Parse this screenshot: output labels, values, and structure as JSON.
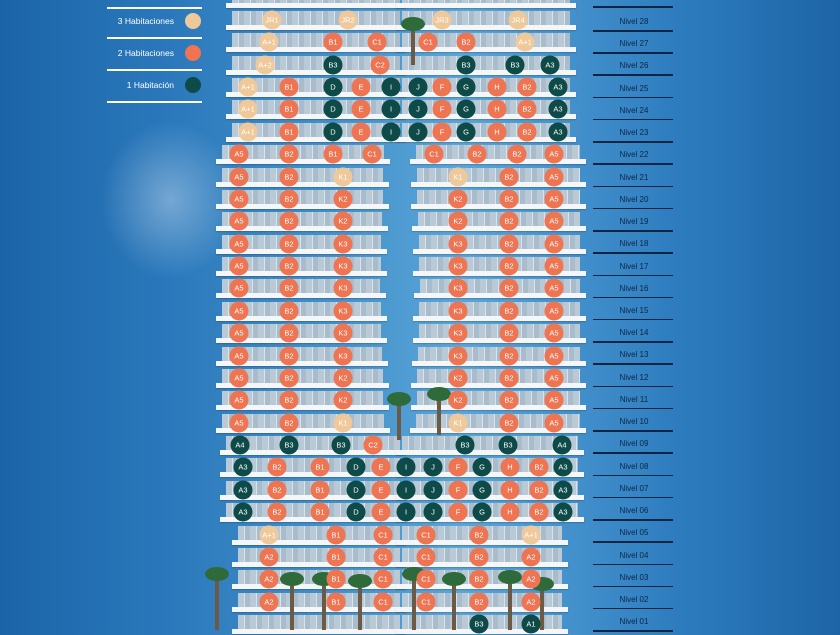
{
  "colors": {
    "three_bed": "#f0c99a",
    "two_bed": "#ee7452",
    "one_bed": "#0d4a48"
  },
  "legend": [
    {
      "label": "3 Habitaciones",
      "type": "three_bed"
    },
    {
      "label": "2 Habitaciones",
      "type": "two_bed"
    },
    {
      "label": "1 Habitación",
      "type": "one_bed"
    }
  ],
  "floors": [
    {
      "level": "Nivel 28",
      "units": [
        [
          "JR1",
          "three_bed"
        ],
        [
          "JR2",
          "three_bed"
        ],
        [
          "JR3",
          "three_bed"
        ],
        [
          "JR4",
          "three_bed"
        ]
      ]
    },
    {
      "level": "Nivel 27",
      "units": [
        [
          "A+1",
          "three_bed"
        ],
        [
          "B1",
          "two_bed"
        ],
        [
          "C1",
          "two_bed"
        ],
        [
          "C1",
          "two_bed"
        ],
        [
          "B2",
          "two_bed"
        ],
        [
          "A+1",
          "three_bed"
        ]
      ]
    },
    {
      "level": "Nivel 26",
      "units": [
        [
          "A+2",
          "three_bed"
        ],
        [
          "B3",
          "one_bed"
        ],
        [
          "C2",
          "two_bed"
        ],
        [
          "B3",
          "one_bed"
        ],
        [
          "B3",
          "one_bed"
        ],
        [
          "A3",
          "one_bed"
        ]
      ]
    },
    {
      "level": "Nivel 25",
      "units": [
        [
          "A+1",
          "three_bed"
        ],
        [
          "B1",
          "two_bed"
        ],
        [
          "D",
          "one_bed"
        ],
        [
          "E",
          "two_bed"
        ],
        [
          "I",
          "one_bed"
        ],
        [
          "J",
          "one_bed"
        ],
        [
          "F",
          "two_bed"
        ],
        [
          "G",
          "one_bed"
        ],
        [
          "H",
          "two_bed"
        ],
        [
          "B2",
          "two_bed"
        ],
        [
          "A3",
          "one_bed"
        ]
      ]
    },
    {
      "level": "Nivel 24",
      "units": [
        [
          "A+1",
          "three_bed"
        ],
        [
          "B1",
          "two_bed"
        ],
        [
          "D",
          "one_bed"
        ],
        [
          "E",
          "two_bed"
        ],
        [
          "I",
          "one_bed"
        ],
        [
          "J",
          "one_bed"
        ],
        [
          "F",
          "two_bed"
        ],
        [
          "G",
          "one_bed"
        ],
        [
          "H",
          "two_bed"
        ],
        [
          "B2",
          "two_bed"
        ],
        [
          "A3",
          "one_bed"
        ]
      ]
    },
    {
      "level": "Nivel 23",
      "units": [
        [
          "A+1",
          "three_bed"
        ],
        [
          "B1",
          "two_bed"
        ],
        [
          "D",
          "one_bed"
        ],
        [
          "E",
          "two_bed"
        ],
        [
          "I",
          "one_bed"
        ],
        [
          "J",
          "one_bed"
        ],
        [
          "F",
          "two_bed"
        ],
        [
          "G",
          "one_bed"
        ],
        [
          "H",
          "two_bed"
        ],
        [
          "B2",
          "two_bed"
        ],
        [
          "A3",
          "one_bed"
        ]
      ]
    },
    {
      "level": "Nivel 22",
      "units": [
        [
          "A5",
          "two_bed"
        ],
        [
          "B2",
          "two_bed"
        ],
        [
          "B1",
          "two_bed"
        ],
        [
          "C1",
          "two_bed"
        ],
        [
          "C1",
          "two_bed"
        ],
        [
          "B2",
          "two_bed"
        ],
        [
          "B2",
          "two_bed"
        ],
        [
          "A5",
          "two_bed"
        ]
      ]
    },
    {
      "level": "Nivel 21",
      "units": [
        [
          "A5",
          "two_bed"
        ],
        [
          "B2",
          "two_bed"
        ],
        [
          "K1",
          "three_bed"
        ],
        [
          "K1",
          "three_bed"
        ],
        [
          "B2",
          "two_bed"
        ],
        [
          "A5",
          "two_bed"
        ]
      ]
    },
    {
      "level": "Nivel 20",
      "units": [
        [
          "A5",
          "two_bed"
        ],
        [
          "B2",
          "two_bed"
        ],
        [
          "K2",
          "two_bed"
        ],
        [
          "K2",
          "two_bed"
        ],
        [
          "B2",
          "two_bed"
        ],
        [
          "A5",
          "two_bed"
        ]
      ]
    },
    {
      "level": "Nivel 19",
      "units": [
        [
          "A5",
          "two_bed"
        ],
        [
          "B2",
          "two_bed"
        ],
        [
          "K2",
          "two_bed"
        ],
        [
          "K2",
          "two_bed"
        ],
        [
          "B2",
          "two_bed"
        ],
        [
          "A5",
          "two_bed"
        ]
      ]
    },
    {
      "level": "Nivel 18",
      "units": [
        [
          "A5",
          "two_bed"
        ],
        [
          "B2",
          "two_bed"
        ],
        [
          "K3",
          "two_bed"
        ],
        [
          "K3",
          "two_bed"
        ],
        [
          "B2",
          "two_bed"
        ],
        [
          "A5",
          "two_bed"
        ]
      ]
    },
    {
      "level": "Nivel 17",
      "units": [
        [
          "A5",
          "two_bed"
        ],
        [
          "B2",
          "two_bed"
        ],
        [
          "K3",
          "two_bed"
        ],
        [
          "K3",
          "two_bed"
        ],
        [
          "B2",
          "two_bed"
        ],
        [
          "A5",
          "two_bed"
        ]
      ]
    },
    {
      "level": "Nivel 16",
      "units": [
        [
          "A5",
          "two_bed"
        ],
        [
          "B2",
          "two_bed"
        ],
        [
          "K3",
          "two_bed"
        ],
        [
          "K3",
          "two_bed"
        ],
        [
          "B2",
          "two_bed"
        ],
        [
          "A5",
          "two_bed"
        ]
      ]
    },
    {
      "level": "Nivel 15",
      "units": [
        [
          "A5",
          "two_bed"
        ],
        [
          "B2",
          "two_bed"
        ],
        [
          "K3",
          "two_bed"
        ],
        [
          "K3",
          "two_bed"
        ],
        [
          "B2",
          "two_bed"
        ],
        [
          "A5",
          "two_bed"
        ]
      ]
    },
    {
      "level": "Nivel 14",
      "units": [
        [
          "A5",
          "two_bed"
        ],
        [
          "B2",
          "two_bed"
        ],
        [
          "K3",
          "two_bed"
        ],
        [
          "K3",
          "two_bed"
        ],
        [
          "B2",
          "two_bed"
        ],
        [
          "A5",
          "two_bed"
        ]
      ]
    },
    {
      "level": "Nivel 13",
      "units": [
        [
          "A5",
          "two_bed"
        ],
        [
          "B2",
          "two_bed"
        ],
        [
          "K3",
          "two_bed"
        ],
        [
          "K3",
          "two_bed"
        ],
        [
          "B2",
          "two_bed"
        ],
        [
          "A5",
          "two_bed"
        ]
      ]
    },
    {
      "level": "Nivel 12",
      "units": [
        [
          "A5",
          "two_bed"
        ],
        [
          "B2",
          "two_bed"
        ],
        [
          "K2",
          "two_bed"
        ],
        [
          "K2",
          "two_bed"
        ],
        [
          "B2",
          "two_bed"
        ],
        [
          "A5",
          "two_bed"
        ]
      ]
    },
    {
      "level": "Nivel 11",
      "units": [
        [
          "A5",
          "two_bed"
        ],
        [
          "B2",
          "two_bed"
        ],
        [
          "K2",
          "two_bed"
        ],
        [
          "K2",
          "two_bed"
        ],
        [
          "B2",
          "two_bed"
        ],
        [
          "A5",
          "two_bed"
        ]
      ]
    },
    {
      "level": "Nivel 10",
      "units": [
        [
          "A5",
          "two_bed"
        ],
        [
          "B2",
          "two_bed"
        ],
        [
          "K1",
          "three_bed"
        ],
        [
          "K1",
          "three_bed"
        ],
        [
          "B2",
          "two_bed"
        ],
        [
          "A5",
          "two_bed"
        ]
      ]
    },
    {
      "level": "Nivel 09",
      "units": [
        [
          "A4",
          "one_bed"
        ],
        [
          "B3",
          "one_bed"
        ],
        [
          "B3",
          "one_bed"
        ],
        [
          "C2",
          "two_bed"
        ],
        [
          "B3",
          "one_bed"
        ],
        [
          "B3",
          "one_bed"
        ],
        [
          "A4",
          "one_bed"
        ]
      ]
    },
    {
      "level": "Nivel 08",
      "units": [
        [
          "A3",
          "one_bed"
        ],
        [
          "B2",
          "two_bed"
        ],
        [
          "B1",
          "two_bed"
        ],
        [
          "D",
          "one_bed"
        ],
        [
          "E",
          "two_bed"
        ],
        [
          "I",
          "one_bed"
        ],
        [
          "J",
          "one_bed"
        ],
        [
          "F",
          "two_bed"
        ],
        [
          "G",
          "one_bed"
        ],
        [
          "H",
          "two_bed"
        ],
        [
          "B2",
          "two_bed"
        ],
        [
          "A3",
          "one_bed"
        ]
      ]
    },
    {
      "level": "Nivel 07",
      "units": [
        [
          "A3",
          "one_bed"
        ],
        [
          "B2",
          "two_bed"
        ],
        [
          "B1",
          "two_bed"
        ],
        [
          "D",
          "one_bed"
        ],
        [
          "E",
          "two_bed"
        ],
        [
          "I",
          "one_bed"
        ],
        [
          "J",
          "one_bed"
        ],
        [
          "F",
          "two_bed"
        ],
        [
          "G",
          "one_bed"
        ],
        [
          "H",
          "two_bed"
        ],
        [
          "B2",
          "two_bed"
        ],
        [
          "A3",
          "one_bed"
        ]
      ]
    },
    {
      "level": "Nivel 06",
      "units": [
        [
          "A3",
          "one_bed"
        ],
        [
          "B2",
          "two_bed"
        ],
        [
          "B1",
          "two_bed"
        ],
        [
          "D",
          "one_bed"
        ],
        [
          "E",
          "two_bed"
        ],
        [
          "I",
          "one_bed"
        ],
        [
          "J",
          "one_bed"
        ],
        [
          "F",
          "two_bed"
        ],
        [
          "G",
          "one_bed"
        ],
        [
          "H",
          "two_bed"
        ],
        [
          "B2",
          "two_bed"
        ],
        [
          "A3",
          "one_bed"
        ]
      ]
    },
    {
      "level": "Nivel 05",
      "units": [
        [
          "A+1",
          "three_bed"
        ],
        [
          "B1",
          "two_bed"
        ],
        [
          "C1",
          "two_bed"
        ],
        [
          "C1",
          "two_bed"
        ],
        [
          "B2",
          "two_bed"
        ],
        [
          "A+1",
          "three_bed"
        ]
      ]
    },
    {
      "level": "Nivel 04",
      "units": [
        [
          "A2",
          "two_bed"
        ],
        [
          "B1",
          "two_bed"
        ],
        [
          "C1",
          "two_bed"
        ],
        [
          "C1",
          "two_bed"
        ],
        [
          "B2",
          "two_bed"
        ],
        [
          "A2",
          "two_bed"
        ]
      ]
    },
    {
      "level": "Nivel 03",
      "units": [
        [
          "A2",
          "two_bed"
        ],
        [
          "B1",
          "two_bed"
        ],
        [
          "C1",
          "two_bed"
        ],
        [
          "C1",
          "two_bed"
        ],
        [
          "B2",
          "two_bed"
        ],
        [
          "A2",
          "two_bed"
        ]
      ]
    },
    {
      "level": "Nivel 02",
      "units": [
        [
          "A2",
          "two_bed"
        ],
        [
          "B1",
          "two_bed"
        ],
        [
          "C1",
          "two_bed"
        ],
        [
          "C1",
          "two_bed"
        ],
        [
          "B2",
          "two_bed"
        ],
        [
          "A2",
          "two_bed"
        ]
      ]
    },
    {
      "level": "Nivel 01",
      "units": [
        [
          "B3",
          "one_bed"
        ],
        [
          "A1",
          "one_bed"
        ]
      ]
    }
  ]
}
